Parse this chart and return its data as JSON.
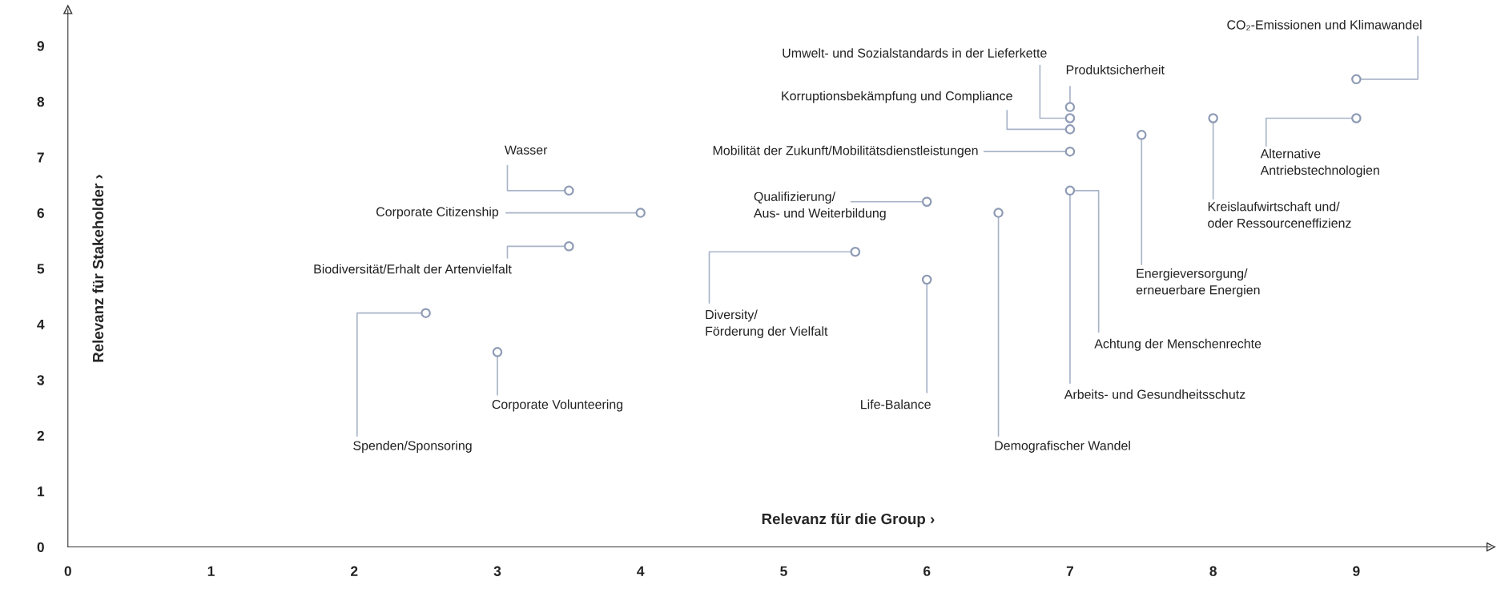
{
  "chart_data": {
    "type": "scatter",
    "xlabel": "Relevanz für die Group ›",
    "ylabel": "Relevanz für Stakeholder ›",
    "xlim": [
      0,
      9.94
    ],
    "ylim": [
      0,
      9.65
    ],
    "xticks": [
      0,
      1,
      2,
      3,
      4,
      5,
      6,
      7,
      8,
      9
    ],
    "yticks": [
      0,
      1,
      2,
      3,
      4,
      5,
      6,
      7,
      8,
      9
    ],
    "grid": false,
    "marker": "circle",
    "series": [
      {
        "color": "#8e9bb5",
        "x": [
          9,
          9,
          8,
          7.5,
          7,
          7,
          7,
          7,
          7,
          6.5,
          6,
          6,
          5.5,
          3.5,
          4,
          3.5,
          2.5,
          3
        ],
        "values": [
          8.4,
          7.7,
          7.7,
          7.4,
          7.9,
          7.7,
          7.5,
          7.1,
          6.4,
          6.0,
          6.2,
          4.8,
          5.3,
          6.4,
          6.0,
          5.4,
          4.2,
          3.5
        ]
      }
    ],
    "annotations": [
      {
        "text": "CO₂-Emissionen und Klimawandel",
        "x": 9,
        "y": 8.4
      },
      {
        "text": "Alternative\nAntriebstechnologien",
        "x": 9,
        "y": 7.7
      },
      {
        "text": "Kreislaufwirtschaft und/\noder Ressourceneffizienz",
        "x": 8,
        "y": 7.7
      },
      {
        "text": "Energieversorgung/\nerneuerbare Energien",
        "x": 7.5,
        "y": 7.4
      },
      {
        "text": "Produktsicherheit",
        "x": 7,
        "y": 7.9
      },
      {
        "text": "Umwelt- und Sozialstandards in der Lieferkette",
        "x": 7,
        "y": 7.7
      },
      {
        "text": "Korruptionsbekämpfung und Compliance",
        "x": 7,
        "y": 7.5
      },
      {
        "text": "Mobilität der Zukunft/Mobilitätsdienstleistungen",
        "x": 7,
        "y": 7.1
      },
      {
        "text": "Arbeits- und Gesundheitsschutz",
        "x": 7,
        "y": 6.4
      },
      {
        "text": "Achtung der Menschenrechte",
        "x": 7,
        "y": 6.4
      },
      {
        "text": "Demografischer Wandel",
        "x": 6.5,
        "y": 6.0
      },
      {
        "text": "Qualifizierung/\nAus- und Weiterbildung",
        "x": 6,
        "y": 6.2
      },
      {
        "text": "Life-Balance",
        "x": 6,
        "y": 4.8
      },
      {
        "text": "Diversity/\nFörderung der Vielfalt",
        "x": 5.5,
        "y": 5.3
      },
      {
        "text": "Wasser",
        "x": 3.5,
        "y": 6.4
      },
      {
        "text": "Corporate Citizenship",
        "x": 4,
        "y": 6.0
      },
      {
        "text": "Biodiversität/Erhalt der Artenvielfalt",
        "x": 3.5,
        "y": 5.4
      },
      {
        "text": "Spenden/Sponsoring",
        "x": 2.5,
        "y": 4.2
      },
      {
        "text": "Corporate Volunteering",
        "x": 3,
        "y": 3.5
      }
    ]
  }
}
